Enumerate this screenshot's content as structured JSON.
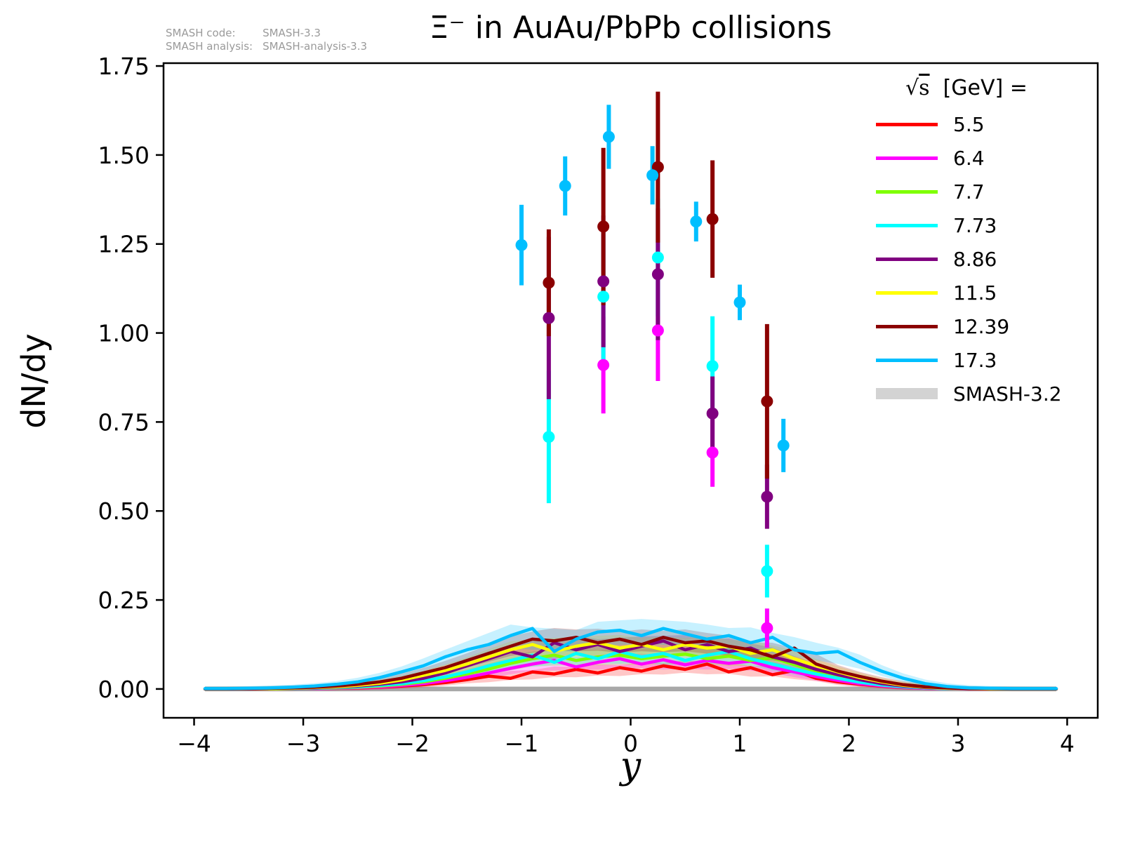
{
  "header": {
    "annotation": {
      "rows": [
        {
          "label": "SMASH code:",
          "value": "SMASH-3.3"
        },
        {
          "label": "SMASH analysis:",
          "value": "SMASH-analysis-3.3"
        }
      ]
    }
  },
  "legend": {
    "radical": "√",
    "radicand": "s",
    "rest": "  [GeV] ="
  },
  "chart_data": {
    "type": "line",
    "subtype": "lines-with-bands-and-errorbar-scatter",
    "title": "Ξ⁻ in AuAu/PbPb collisions",
    "xlabel": "y",
    "ylabel": "dN/dy",
    "xlim": [
      -4.28,
      4.28
    ],
    "ylim": [
      -0.081,
      1.758
    ],
    "grid": false,
    "legend_position": "upper right",
    "xticks": {
      "values": [
        -4,
        -3,
        -2,
        -1,
        0,
        1,
        2,
        3,
        4
      ],
      "labels": [
        "−4",
        "−3",
        "−2",
        "−1",
        "0",
        "1",
        "2",
        "3",
        "4"
      ]
    },
    "yticks": {
      "values": [
        0.0,
        0.25,
        0.5,
        0.75,
        1.0,
        1.25,
        1.5,
        1.75
      ],
      "labels": [
        "0.00",
        "0.25",
        "0.50",
        "0.75",
        "1.00",
        "1.25",
        "1.50",
        "1.75"
      ]
    },
    "bins": {
      "start": -3.9,
      "step": 0.2,
      "count": 40
    },
    "band_note": "shaded translucent bands around each line = SMASH-3.2 result",
    "band_legend": {
      "label": "SMASH-3.2",
      "color": "#d3d3d3"
    },
    "zero_band": {
      "halfwidth": 0.0065,
      "color": "#9e9e9e"
    },
    "series": [
      {
        "name": "5.5",
        "color": "#ff0000",
        "line_values": [
          0.0,
          0.0,
          0.0,
          0.0,
          0.0,
          0.001,
          0.002,
          0.003,
          0.005,
          0.008,
          0.012,
          0.018,
          0.026,
          0.036,
          0.03,
          0.048,
          0.042,
          0.055,
          0.045,
          0.06,
          0.05,
          0.065,
          0.055,
          0.07,
          0.048,
          0.06,
          0.04,
          0.052,
          0.03,
          0.02,
          0.013,
          0.008,
          0.004,
          0.002,
          0.001,
          0.0,
          0.0,
          0.0,
          0.0,
          0.0
        ],
        "points": []
      },
      {
        "name": "6.4",
        "color": "#ff00ff",
        "line_values": [
          0.0,
          0.0,
          0.0,
          0.0,
          0.001,
          0.001,
          0.002,
          0.004,
          0.006,
          0.01,
          0.015,
          0.023,
          0.033,
          0.045,
          0.058,
          0.07,
          0.08,
          0.062,
          0.075,
          0.085,
          0.07,
          0.082,
          0.068,
          0.08,
          0.072,
          0.078,
          0.06,
          0.048,
          0.035,
          0.024,
          0.015,
          0.009,
          0.005,
          0.002,
          0.001,
          0.0,
          0.0,
          0.0,
          0.0,
          0.0
        ],
        "points": [
          {
            "x": -0.25,
            "y": 0.91,
            "err": 0.136
          },
          {
            "x": 0.25,
            "y": 1.007,
            "err": 0.142
          },
          {
            "x": 0.75,
            "y": 0.664,
            "err": 0.096
          },
          {
            "x": 1.25,
            "y": 0.171,
            "err": 0.055
          }
        ]
      },
      {
        "name": "7.7",
        "color": "#7fff00",
        "line_values": [
          0.0,
          0.0,
          0.0,
          0.0,
          0.001,
          0.002,
          0.003,
          0.005,
          0.008,
          0.013,
          0.02,
          0.03,
          0.042,
          0.056,
          0.072,
          0.085,
          0.095,
          0.08,
          0.09,
          0.095,
          0.085,
          0.092,
          0.098,
          0.085,
          0.092,
          0.08,
          0.088,
          0.068,
          0.05,
          0.036,
          0.024,
          0.014,
          0.008,
          0.004,
          0.002,
          0.001,
          0.0,
          0.0,
          0.0,
          0.0
        ],
        "points": []
      },
      {
        "name": "7.73",
        "color": "#00ffff",
        "line_values": [
          0.0,
          0.0,
          0.0,
          0.001,
          0.001,
          0.002,
          0.004,
          0.006,
          0.01,
          0.015,
          0.023,
          0.034,
          0.048,
          0.065,
          0.08,
          0.095,
          0.075,
          0.1,
          0.085,
          0.105,
          0.09,
          0.1,
          0.08,
          0.095,
          0.105,
          0.085,
          0.07,
          0.055,
          0.042,
          0.03,
          0.019,
          0.011,
          0.006,
          0.003,
          0.001,
          0.001,
          0.0,
          0.0,
          0.0,
          0.0
        ],
        "points": [
          {
            "x": -0.75,
            "y": 0.708,
            "err": 0.186
          },
          {
            "x": -0.25,
            "y": 1.102,
            "err": 0.2
          },
          {
            "x": 0.25,
            "y": 1.212,
            "err": 0.165
          },
          {
            "x": 0.75,
            "y": 0.907,
            "err": 0.14
          },
          {
            "x": 1.25,
            "y": 0.331,
            "err": 0.074
          }
        ]
      },
      {
        "name": "8.86",
        "color": "#800080",
        "line_values": [
          0.0,
          0.0,
          0.0,
          0.001,
          0.002,
          0.003,
          0.005,
          0.008,
          0.013,
          0.02,
          0.03,
          0.045,
          0.065,
          0.085,
          0.105,
          0.09,
          0.13,
          0.11,
          0.125,
          0.105,
          0.12,
          0.135,
          0.11,
          0.125,
          0.105,
          0.115,
          0.09,
          0.075,
          0.055,
          0.04,
          0.026,
          0.015,
          0.008,
          0.004,
          0.002,
          0.001,
          0.0,
          0.0,
          0.0,
          0.0
        ],
        "points": [
          {
            "x": -0.75,
            "y": 1.042,
            "err": 0.228
          },
          {
            "x": -0.25,
            "y": 1.145,
            "err": 0.185
          },
          {
            "x": 0.25,
            "y": 1.165,
            "err": 0.185
          },
          {
            "x": 0.75,
            "y": 0.774,
            "err": 0.104
          },
          {
            "x": 1.25,
            "y": 0.54,
            "err": 0.09
          }
        ]
      },
      {
        "name": "11.5",
        "color": "#ffff00",
        "line_values": [
          0.0,
          0.0,
          0.001,
          0.001,
          0.002,
          0.004,
          0.006,
          0.01,
          0.016,
          0.025,
          0.038,
          0.052,
          0.07,
          0.09,
          0.11,
          0.125,
          0.105,
          0.12,
          0.13,
          0.115,
          0.125,
          0.11,
          0.125,
          0.115,
          0.12,
          0.1,
          0.11,
          0.085,
          0.065,
          0.048,
          0.032,
          0.02,
          0.01,
          0.005,
          0.002,
          0.001,
          0.0,
          0.0,
          0.0,
          0.0
        ],
        "points": []
      },
      {
        "name": "12.39",
        "color": "#8b0000",
        "line_values": [
          0.0,
          0.0,
          0.001,
          0.002,
          0.003,
          0.005,
          0.008,
          0.013,
          0.02,
          0.03,
          0.045,
          0.06,
          0.08,
          0.1,
          0.12,
          0.14,
          0.135,
          0.145,
          0.13,
          0.14,
          0.125,
          0.145,
          0.13,
          0.135,
          0.12,
          0.11,
          0.09,
          0.115,
          0.07,
          0.05,
          0.035,
          0.022,
          0.012,
          0.006,
          0.003,
          0.001,
          0.001,
          0.0,
          0.0,
          0.0
        ],
        "points": [
          {
            "x": -0.75,
            "y": 1.141,
            "err": 0.15
          },
          {
            "x": -0.25,
            "y": 1.299,
            "err": 0.221
          },
          {
            "x": 0.25,
            "y": 1.466,
            "err": 0.212
          },
          {
            "x": 0.75,
            "y": 1.32,
            "err": 0.165
          },
          {
            "x": 1.25,
            "y": 0.808,
            "err": 0.217
          }
        ]
      },
      {
        "name": "17.3",
        "color": "#00bfff",
        "line_values": [
          0.001,
          0.001,
          0.002,
          0.003,
          0.005,
          0.008,
          0.013,
          0.02,
          0.032,
          0.048,
          0.065,
          0.09,
          0.11,
          0.125,
          0.15,
          0.17,
          0.105,
          0.14,
          0.16,
          0.165,
          0.15,
          0.17,
          0.155,
          0.14,
          0.15,
          0.13,
          0.145,
          0.11,
          0.1,
          0.105,
          0.075,
          0.05,
          0.03,
          0.015,
          0.007,
          0.003,
          0.002,
          0.001,
          0.001,
          0.001
        ],
        "points": [
          {
            "x": -1.0,
            "y": 1.247,
            "err": 0.113
          },
          {
            "x": -0.6,
            "y": 1.413,
            "err": 0.083
          },
          {
            "x": -0.2,
            "y": 1.551,
            "err": 0.09
          },
          {
            "x": 0.2,
            "y": 1.443,
            "err": 0.082
          },
          {
            "x": 0.6,
            "y": 1.313,
            "err": 0.056
          },
          {
            "x": 1.0,
            "y": 1.086,
            "err": 0.05
          },
          {
            "x": 1.4,
            "y": 0.684,
            "err": 0.075
          }
        ]
      }
    ]
  }
}
